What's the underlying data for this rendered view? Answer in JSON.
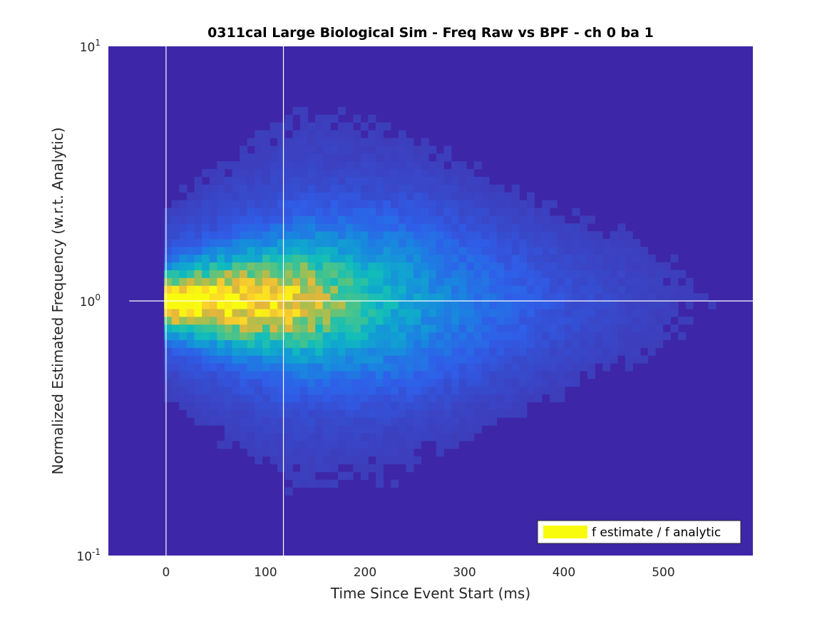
{
  "chart_data": {
    "type": "heatmap",
    "title": "0311cal Large Biological Sim - Freq Raw vs BPF - ch 0 ba 1",
    "xlabel": "Time Since Event Start (ms)",
    "ylabel": "Normalized Estimated Frequency (w.r.t. Analytic)",
    "xlim": [
      -58,
      590
    ],
    "ylim": [
      0.1,
      10
    ],
    "yscale": "log",
    "grid": false,
    "xticks": [
      {
        "value": 0,
        "label": "0"
      },
      {
        "value": 100,
        "label": "100"
      },
      {
        "value": 200,
        "label": "200"
      },
      {
        "value": 300,
        "label": "300"
      },
      {
        "value": 400,
        "label": "400"
      },
      {
        "value": 500,
        "label": "500"
      }
    ],
    "yticks": [
      {
        "value": 0.1,
        "base": "10",
        "exp": "-1"
      },
      {
        "value": 1,
        "base": "10",
        "exp": "0"
      },
      {
        "value": 10,
        "base": "10",
        "exp": "1"
      }
    ],
    "reference_lines": {
      "vertical_x": [
        0,
        118
      ],
      "horizontal_y": [
        1
      ],
      "horizontal_x_start": -37,
      "color": "#ffffff"
    },
    "legend": {
      "label": "f estimate / f analytic",
      "location": "bottom-right",
      "swatch_color": "#f9fb0e"
    },
    "colormap": [
      "#352a87",
      "#3e3ab6",
      "#2f5ee9",
      "#1a85e0",
      "#10a6cf",
      "#12beb9",
      "#4ac48a",
      "#a6bf4f",
      "#e6b53a",
      "#fcd52a",
      "#f9fb0e"
    ],
    "background_color": "#3e26a8",
    "distribution": {
      "x_bin_width_ms": 7.6,
      "log10_y_bin_width": 0.0305,
      "x_bins_from": -2,
      "x_bins_to": 590,
      "y_bins_from": 0.15,
      "y_bins_to": 8,
      "onset_ms": 0,
      "peak_plateau_end_ms": 135,
      "decay_time_ms": 120,
      "spread_log10_near": 0.07,
      "spread_log10_far": 0.22,
      "peak_density": 1.0
    }
  }
}
